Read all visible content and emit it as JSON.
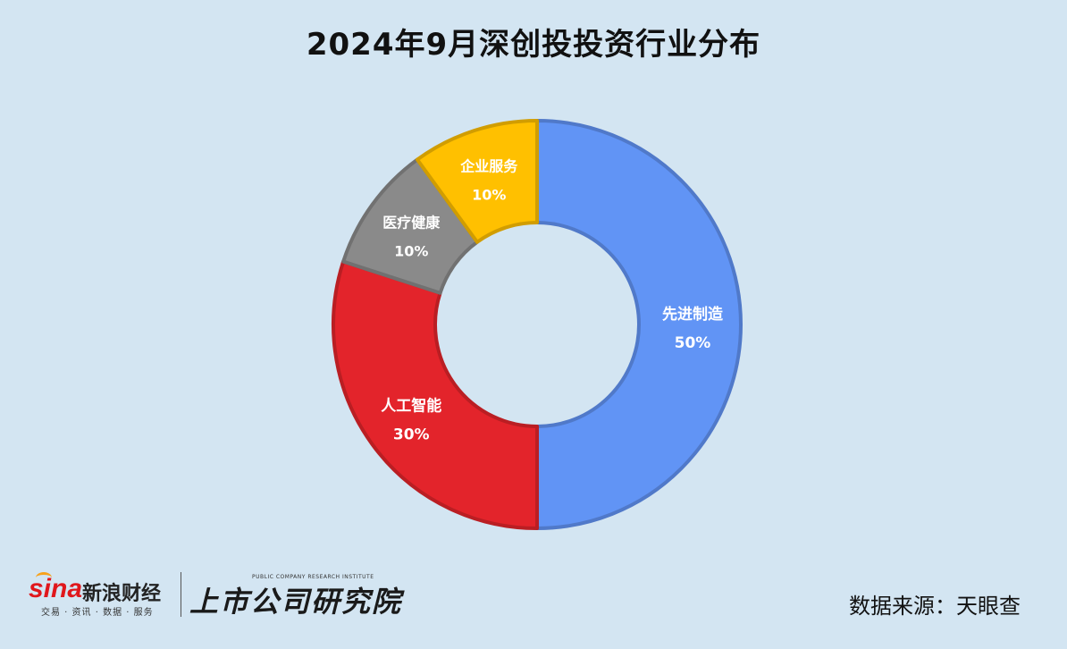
{
  "title": "2024年9月深创投投资行业分布",
  "chart_data": {
    "type": "pie",
    "donut": true,
    "title": "2024年9月深创投投资行业分布",
    "slices": [
      {
        "label": "先进制造",
        "value": 50,
        "value_label": "50%",
        "color": "#6194f5"
      },
      {
        "label": "人工智能",
        "value": 30,
        "value_label": "30%",
        "color": "#e3242b"
      },
      {
        "label": "医疗健康",
        "value": 10,
        "value_label": "10%",
        "color": "#8a8a8a"
      },
      {
        "label": "企业服务",
        "value": 10,
        "value_label": "10%",
        "color": "#ffc000"
      }
    ],
    "start_angle": "12 o'clock",
    "direction": "clockwise",
    "legend": "none"
  },
  "footer": {
    "sina_logo_text": "sina",
    "sina_name": "新浪财经",
    "sina_tagline": "交易 · 资讯 · 数据 · 服务",
    "brand_name": "上市公司研究院",
    "brand_tagline": "PUBLIC COMPANY RESEARCH INSTITUTE",
    "source": "数据来源：天眼查"
  }
}
